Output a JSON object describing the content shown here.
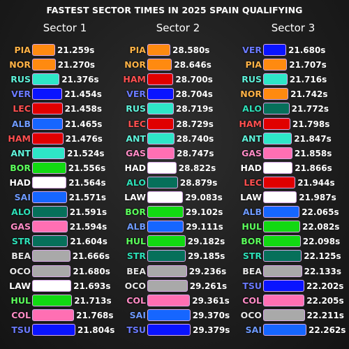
{
  "chart_data": {
    "type": "bar",
    "title": "FASTEST SECTOR TIMES IN 2025 SPAIN QUALIFYING",
    "team_colors": {
      "PIA": "#ff8a10",
      "NOR": "#ff8a10",
      "RUS": "#2ee6c7",
      "ANT": "#2ee6c7",
      "VER": "#0a14ff",
      "TSU": "#0a14ff",
      "LEC": "#e00000",
      "HAM": "#e00000",
      "ALB": "#1666ff",
      "SAI": "#1666ff",
      "BOR": "#12d912",
      "HUL": "#12d912",
      "HAD": "#ffffff",
      "LAW": "#ffffff",
      "ALO": "#06705a",
      "STR": "#06705a",
      "GAS": "#ff6fb3",
      "COL": "#ff6fb3",
      "BEA": "#a9a9a9",
      "OCO": "#a9a9a9"
    },
    "label_colors": {
      "PIA": "#ffb347",
      "NOR": "#ffb347",
      "RUS": "#5ff2da",
      "ANT": "#5ff2da",
      "VER": "#6b7bff",
      "TSU": "#6b7bff",
      "LEC": "#ff5050",
      "HAM": "#ff5050",
      "ALB": "#6f9bff",
      "SAI": "#6f9bff",
      "BOR": "#5cff5c",
      "HUL": "#5cff5c",
      "HAD": "#ffffff",
      "LAW": "#ffffff",
      "ALO": "#2ee0b8",
      "STR": "#2ee0b8",
      "GAS": "#ff8cc6",
      "COL": "#ff8cc6",
      "BEA": "#e6e6e6",
      "OCO": "#e6e6e6"
    },
    "sectors": [
      {
        "name": "Sector 1",
        "drivers": [
          "PIA",
          "NOR",
          "RUS",
          "VER",
          "LEC",
          "ALB",
          "HAM",
          "ANT",
          "BOR",
          "HAD",
          "SAI",
          "ALO",
          "GAS",
          "STR",
          "BEA",
          "OCO",
          "LAW",
          "HUL",
          "COL",
          "TSU"
        ],
        "values": [
          21.259,
          21.27,
          21.376,
          21.454,
          21.458,
          21.465,
          21.476,
          21.524,
          21.556,
          21.564,
          21.571,
          21.591,
          21.594,
          21.604,
          21.666,
          21.68,
          21.693,
          21.713,
          21.768,
          21.804
        ],
        "labels": [
          "21.259s",
          "21.270s",
          "21.376s",
          "21.454s",
          "21.458s",
          "21.465s",
          "21.476s",
          "21.524s",
          "21.556s",
          "21.564s",
          "21.571s",
          "21.591s",
          "21.594s",
          "21.604s",
          "21.666s",
          "21.680s",
          "21.693s",
          "21.713s",
          "21.768s",
          "21.804s"
        ]
      },
      {
        "name": "Sector 2",
        "drivers": [
          "PIA",
          "NOR",
          "HAM",
          "VER",
          "RUS",
          "LEC",
          "ANT",
          "GAS",
          "HAD",
          "ALO",
          "LAW",
          "BOR",
          "ALB",
          "HUL",
          "STR",
          "BEA",
          "OCO",
          "COL",
          "SAI",
          "TSU"
        ],
        "values": [
          28.58,
          28.646,
          28.7,
          28.704,
          28.719,
          28.729,
          28.74,
          28.747,
          28.822,
          28.879,
          29.083,
          29.102,
          29.111,
          29.182,
          29.185,
          29.236,
          29.261,
          29.361,
          29.37,
          29.379
        ],
        "labels": [
          "28.580s",
          "28.646s",
          "28.700s",
          "28.704s",
          "28.719s",
          "28.729s",
          "28.740s",
          "28.747s",
          "28.822s",
          "28.879s",
          "29.083s",
          "29.102s",
          "29.111s",
          "29.182s",
          "29.185s",
          "29.236s",
          "29.261s",
          "29.361s",
          "29.370s",
          "29.379s"
        ]
      },
      {
        "name": "Sector 3",
        "drivers": [
          "VER",
          "PIA",
          "RUS",
          "NOR",
          "ALO",
          "HAM",
          "ANT",
          "GAS",
          "HAD",
          "LEC",
          "LAW",
          "ALB",
          "HUL",
          "BOR",
          "STR",
          "BEA",
          "TSU",
          "COL",
          "OCO",
          "SAI"
        ],
        "values": [
          21.68,
          21.707,
          21.716,
          21.742,
          21.772,
          21.798,
          21.847,
          21.858,
          21.866,
          21.944,
          21.987,
          22.065,
          22.082,
          22.098,
          22.125,
          22.133,
          22.202,
          22.205,
          22.211,
          22.262
        ],
        "labels": [
          "21.680s",
          "21.707s",
          "21.716s",
          "21.742s",
          "21.772s",
          "21.798s",
          "21.847s",
          "21.858s",
          "21.866s",
          "21.944s",
          "21.987s",
          "22.065s",
          "22.082s",
          "22.098s",
          "22.125s",
          "22.133s",
          "22.202s",
          "22.205s",
          "22.211s",
          "22.262s"
        ]
      }
    ]
  }
}
